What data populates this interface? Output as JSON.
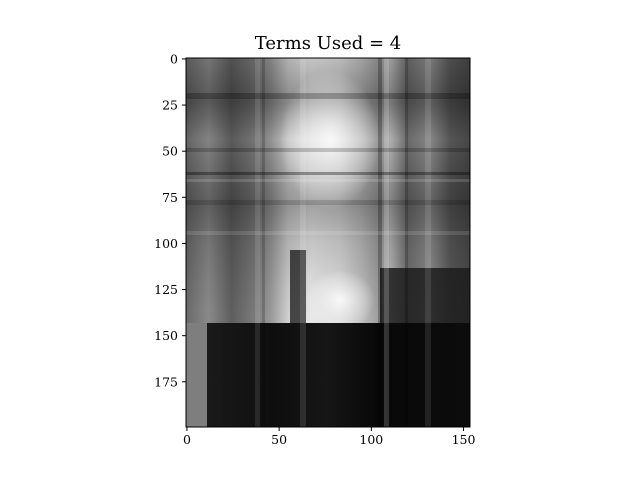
{
  "chart_data": {
    "type": "heatmap",
    "title": "Terms Used = 4",
    "xlabel": "",
    "ylabel": "",
    "colormap": "gray",
    "image_width": 154,
    "image_height": 200,
    "xlim": [
      -0.5,
      153.5
    ],
    "ylim": [
      199.5,
      -0.5
    ],
    "x_ticks": [
      0,
      50,
      100,
      150
    ],
    "y_ticks": [
      0,
      25,
      50,
      75,
      100,
      125,
      150,
      175
    ],
    "x_tick_labels": [
      "0",
      "50",
      "100",
      "150"
    ],
    "y_tick_labels": [
      "0",
      "25",
      "50",
      "75",
      "100",
      "125",
      "150",
      "175"
    ],
    "description_of_values": "rank-4 SVD approximation of a grayscale photo; bright central region around x 60-100, y 20-140, dark lower band below y 145 from x 12 onward"
  }
}
